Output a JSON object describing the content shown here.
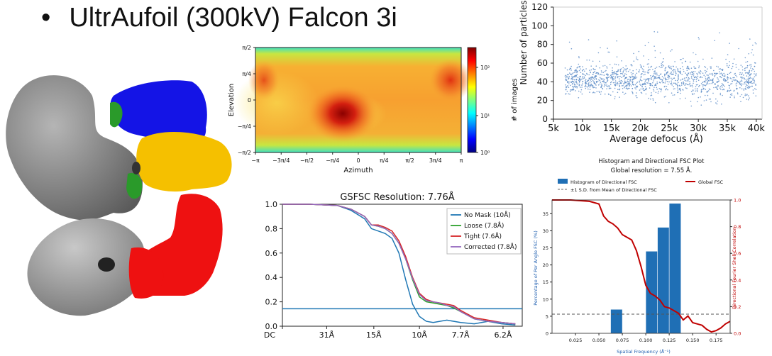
{
  "slide": {
    "bullet": "•",
    "title": "UltrAufoil (300kV) Falcon 3i"
  },
  "colors": {
    "map_blue": "#1414e6",
    "map_green": "#2a9a2a",
    "map_yellow": "#f5c000",
    "map_red": "#ee1111",
    "map_grey": "#8a8a8a",
    "scatter_point": "#4a7fc0",
    "fsc_nomask": "#1f77b4",
    "fsc_loose": "#2ca02c",
    "fsc_tight": "#d62728",
    "fsc_corrected": "#9467bd",
    "fsc_threshold": "#1f77b4",
    "hist_bar": "#1f6fb5",
    "global_fsc": "#c00000"
  },
  "icons": {
    "density_map": "3d-density-map-illustration"
  },
  "chart_data": [
    {
      "type": "heatmap",
      "id": "viewing-direction",
      "xlabel": "Azimuth",
      "ylabel": "Elevation",
      "xticks": [
        "−π",
        "−3π/4",
        "−π/2",
        "−π/4",
        "0",
        "π/4",
        "π/2",
        "3π/4",
        "π"
      ],
      "yticks": [
        "π/2",
        "π/4",
        "0",
        "−π/4",
        "−π/2"
      ],
      "colorbar_label": "# of images",
      "colorbar_ticks": [
        "10²",
        "10¹",
        "10⁰"
      ],
      "colormap": "jet",
      "hotspots": [
        {
          "azimuth": -0.25,
          "elevation": -0.5,
          "intensity": 1.0
        },
        {
          "azimuth": 3.0,
          "elevation": 0.65,
          "intensity": 0.75
        },
        {
          "azimuth": -2.9,
          "elevation": 0.7,
          "intensity": 0.6
        }
      ]
    },
    {
      "type": "scatter",
      "id": "particles-vs-defocus",
      "xlabel": "Average defocus (Å)",
      "ylabel": "Number of particles",
      "xticks": [
        "5k",
        "10k",
        "15k",
        "20k",
        "25k",
        "30k",
        "35k",
        "40k"
      ],
      "yticks": [
        "0",
        "20",
        "40",
        "60",
        "80",
        "100",
        "120"
      ],
      "xlim": [
        5000,
        41000
      ],
      "ylim": [
        0,
        120
      ],
      "x_range": [
        7000,
        40000
      ],
      "y_center": 42,
      "y_spread": 12
    },
    {
      "type": "line",
      "id": "gsfsc",
      "title": "GSFSC Resolution: 7.76Å",
      "xticks": [
        "DC",
        "31Å",
        "15Å",
        "10Å",
        "7.7Å",
        "6.2Å"
      ],
      "yticks": [
        "0.0",
        "0.2",
        "0.4",
        "0.6",
        "0.8",
        "1.0"
      ],
      "xlim": [
        0,
        0.175
      ],
      "ylim": [
        0,
        1
      ],
      "threshold": 0.143,
      "legend_position": "top-right",
      "series": [
        {
          "name": "No Mask (10Å)",
          "color_key": "fsc_nomask",
          "x": [
            0,
            0.02,
            0.04,
            0.05,
            0.06,
            0.065,
            0.07,
            0.075,
            0.08,
            0.085,
            0.09,
            0.095,
            0.1,
            0.105,
            0.11,
            0.12,
            0.13,
            0.14,
            0.15,
            0.16,
            0.17
          ],
          "y": [
            1,
            1,
            0.99,
            0.95,
            0.88,
            0.8,
            0.78,
            0.76,
            0.72,
            0.6,
            0.38,
            0.18,
            0.08,
            0.04,
            0.03,
            0.05,
            0.03,
            0.02,
            0.04,
            0.02,
            0.01
          ]
        },
        {
          "name": "Loose (7.8Å)",
          "color_key": "fsc_loose",
          "x": [
            0,
            0.02,
            0.04,
            0.05,
            0.06,
            0.065,
            0.07,
            0.075,
            0.08,
            0.085,
            0.09,
            0.095,
            0.1,
            0.105,
            0.11,
            0.115,
            0.12,
            0.125,
            0.13,
            0.14,
            0.15,
            0.16,
            0.17
          ],
          "y": [
            1,
            1,
            0.99,
            0.96,
            0.9,
            0.83,
            0.82,
            0.8,
            0.76,
            0.68,
            0.55,
            0.38,
            0.24,
            0.2,
            0.19,
            0.18,
            0.17,
            0.15,
            0.12,
            0.06,
            0.04,
            0.03,
            0.02
          ]
        },
        {
          "name": "Tight (7.6Å)",
          "color_key": "fsc_tight",
          "x": [
            0,
            0.02,
            0.04,
            0.05,
            0.06,
            0.065,
            0.07,
            0.075,
            0.08,
            0.085,
            0.09,
            0.095,
            0.1,
            0.105,
            0.11,
            0.115,
            0.12,
            0.125,
            0.13,
            0.14,
            0.15,
            0.16,
            0.17
          ],
          "y": [
            1,
            1,
            0.99,
            0.96,
            0.9,
            0.83,
            0.83,
            0.81,
            0.78,
            0.7,
            0.57,
            0.4,
            0.27,
            0.22,
            0.2,
            0.19,
            0.18,
            0.17,
            0.13,
            0.07,
            0.05,
            0.03,
            0.02
          ]
        },
        {
          "name": "Corrected (7.8Å)",
          "color_key": "fsc_corrected",
          "x": [
            0,
            0.02,
            0.04,
            0.05,
            0.06,
            0.065,
            0.07,
            0.075,
            0.08,
            0.085,
            0.09,
            0.095,
            0.1,
            0.105,
            0.11,
            0.115,
            0.12,
            0.125,
            0.13,
            0.14,
            0.15,
            0.16,
            0.17
          ],
          "y": [
            1,
            1,
            0.99,
            0.96,
            0.9,
            0.83,
            0.82,
            0.8,
            0.76,
            0.68,
            0.55,
            0.39,
            0.26,
            0.21,
            0.2,
            0.19,
            0.17,
            0.16,
            0.12,
            0.06,
            0.04,
            0.03,
            0.02
          ]
        }
      ]
    },
    {
      "type": "bar",
      "id": "directional-fsc",
      "title": "Histogram and Directional FSC Plot",
      "subtitle": "Global resolution = 7.55 Å.",
      "xlabel": "Spatial Frequency (Å⁻¹)",
      "ylabel": "Percentage of Per Angle FSC (%)",
      "y2label": "Directional Fourier Shell Correlation",
      "xticks": [
        "0.025",
        "0.050",
        "0.075",
        "0.100",
        "0.125",
        "0.150",
        "0.175"
      ],
      "yticks": [
        "0",
        "5",
        "10",
        "15",
        "20",
        "25",
        "30",
        "35"
      ],
      "y2ticks": [
        "0.0",
        "0.2",
        "0.4",
        "0.6",
        "0.8",
        "1.0"
      ],
      "xlim": [
        0,
        0.19
      ],
      "ylim": [
        0,
        39
      ],
      "legend": [
        "Histogram of Directional FSC",
        "±1 S.D. from Mean of Directional FSC",
        "Global FSC"
      ],
      "legend_position": "top",
      "bars": [
        {
          "x0": 0.0625,
          "x1": 0.075,
          "value": 7
        },
        {
          "x0": 0.1,
          "x1": 0.1125,
          "value": 24
        },
        {
          "x0": 0.1125,
          "x1": 0.125,
          "value": 31
        },
        {
          "x0": 0.125,
          "x1": 0.1375,
          "value": 38
        }
      ],
      "dashed_level": 5.6,
      "global_fsc": {
        "x": [
          0,
          0.02,
          0.04,
          0.05,
          0.055,
          0.06,
          0.065,
          0.07,
          0.075,
          0.08,
          0.085,
          0.09,
          0.095,
          0.1,
          0.105,
          0.11,
          0.115,
          0.12,
          0.125,
          0.13,
          0.135,
          0.14,
          0.145,
          0.15,
          0.155,
          0.16,
          0.165,
          0.17,
          0.175,
          0.18,
          0.185,
          0.19
        ],
        "y": [
          1,
          1,
          0.99,
          0.97,
          0.88,
          0.84,
          0.82,
          0.79,
          0.74,
          0.72,
          0.7,
          0.62,
          0.5,
          0.36,
          0.3,
          0.28,
          0.25,
          0.2,
          0.19,
          0.17,
          0.15,
          0.1,
          0.13,
          0.08,
          0.07,
          0.06,
          0.03,
          0.01,
          0.02,
          0.04,
          0.07,
          0.09
        ]
      }
    }
  ]
}
